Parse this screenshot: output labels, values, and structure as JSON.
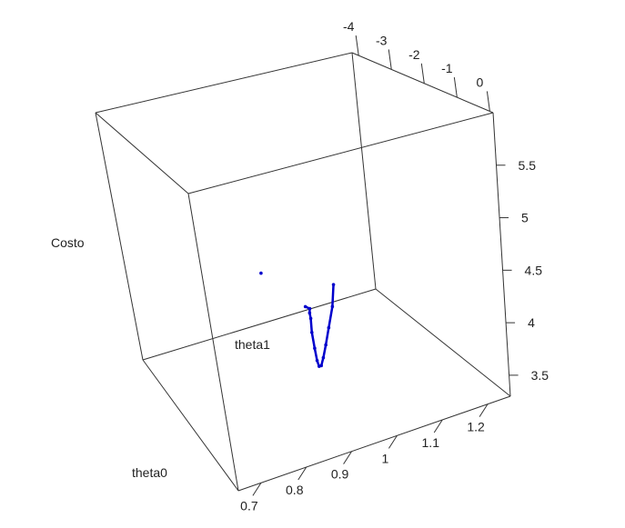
{
  "chart_data": {
    "type": "scatter",
    "projection": "3d-perspective",
    "title": "",
    "xlabel": "theta0",
    "ylabel": "theta1",
    "zlabel": "Costo",
    "axes": {
      "theta0": {
        "label": "theta0",
        "range": [
          0.65,
          1.25
        ],
        "ticks": [
          "0.7",
          "0.8",
          "0.9",
          "1",
          "1.1",
          "1.2"
        ]
      },
      "theta1": {
        "label": "theta1",
        "range": [
          -4.2,
          0.1
        ],
        "ticks": [
          "-4",
          "-3",
          "-2",
          "-1",
          "0"
        ]
      },
      "cost": {
        "label": "Costo",
        "range": [
          3.3,
          6.0
        ],
        "ticks": [
          "3.5",
          "4",
          "4.5",
          "5",
          "5.5"
        ]
      }
    },
    "series": [
      {
        "color": "#0000cc",
        "points": [
          {
            "theta0": 1.1,
            "theta1": -0.45,
            "cost": 3.8
          },
          {
            "theta0": 1.09,
            "theta1": -0.55,
            "cost": 3.55
          },
          {
            "theta0": 1.07,
            "theta1": -0.7,
            "cost": 3.35
          },
          {
            "theta0": 1.05,
            "theta1": -0.88,
            "cost": 3.22
          },
          {
            "theta0": 1.03,
            "theta1": -1.08,
            "cost": 3.16
          },
          {
            "theta0": 1.01,
            "theta1": -1.3,
            "cost": 3.17
          },
          {
            "theta0": 0.99,
            "theta1": -1.52,
            "cost": 3.27
          },
          {
            "theta0": 0.97,
            "theta1": -1.75,
            "cost": 3.45
          },
          {
            "theta0": 0.95,
            "theta1": -1.97,
            "cost": 3.7
          },
          {
            "theta0": 0.93,
            "theta1": -2.18,
            "cost": 3.98
          },
          {
            "theta0": 0.915,
            "theta1": -2.38,
            "cost": 4.22
          },
          {
            "theta0": 0.905,
            "theta1": -2.5,
            "cost": 4.33
          },
          {
            "theta0": 0.898,
            "theta1": -2.62,
            "cost": 4.42
          },
          {
            "theta0": 0.88,
            "theta1": -2.75,
            "cost": 4.5
          },
          {
            "theta0": 0.7,
            "theta1": -4.2,
            "cost": 5.4
          }
        ]
      }
    ],
    "grid": false,
    "legend": "none"
  }
}
